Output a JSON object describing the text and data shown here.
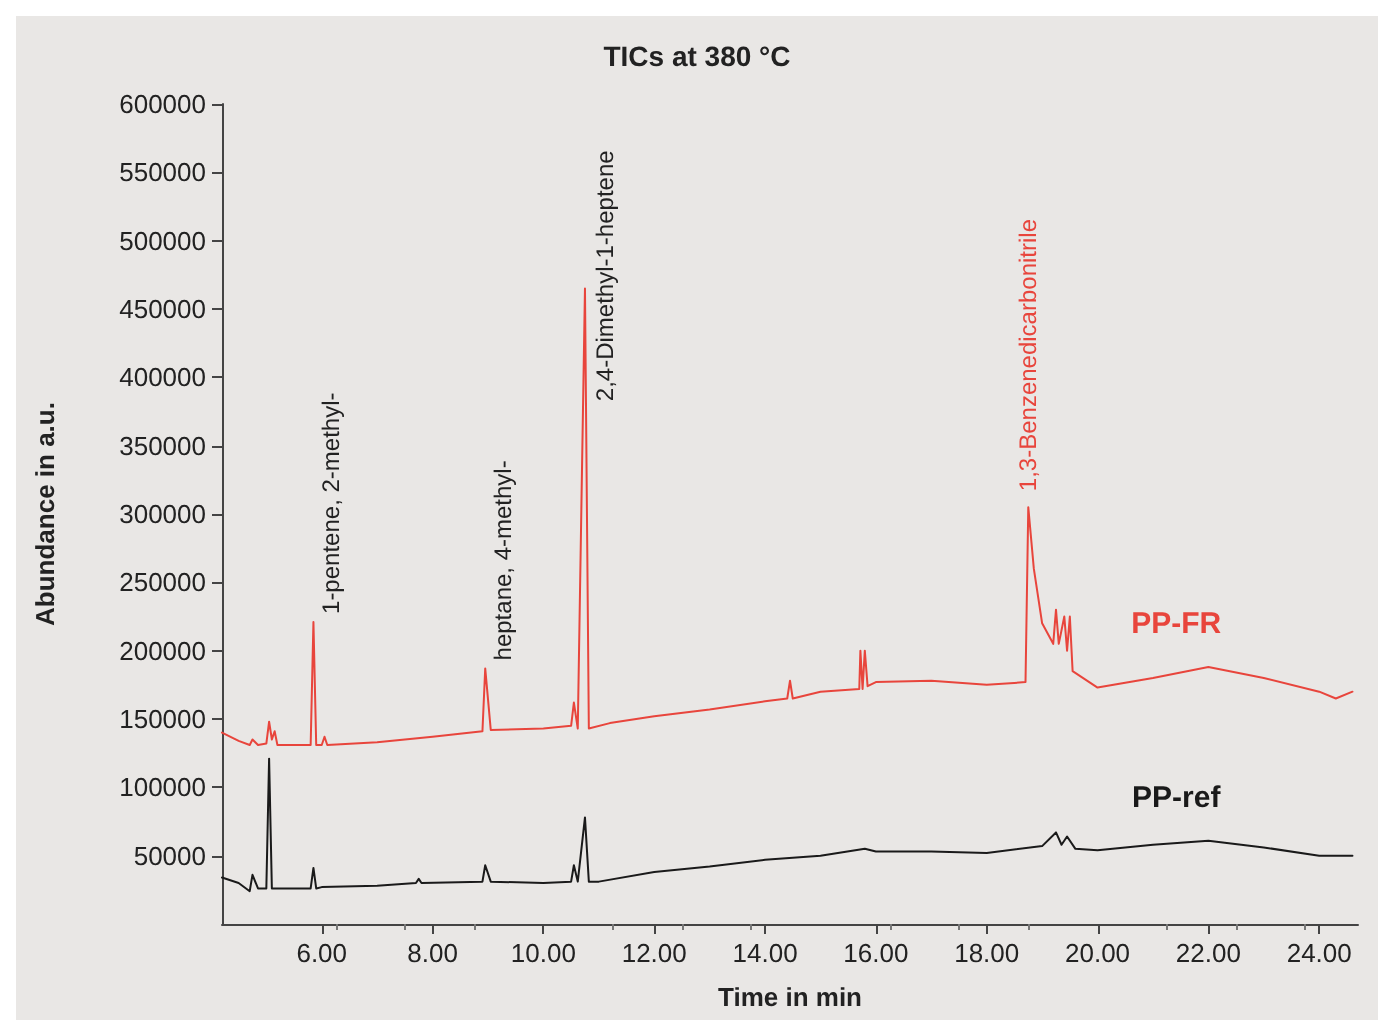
{
  "chart_data": {
    "type": "line",
    "title": "TICs at 380 °C",
    "xlabel": "Time in min",
    "ylabel": "Abundance in a.u.",
    "xlim": [
      4.2,
      24.7
    ],
    "ylim": [
      0,
      600000
    ],
    "xticks": [
      {
        "value": 6,
        "label": "6.00"
      },
      {
        "value": 8,
        "label": "8.00"
      },
      {
        "value": 10,
        "label": "10.00"
      },
      {
        "value": 12,
        "label": "12.00"
      },
      {
        "value": 14,
        "label": "14.00"
      },
      {
        "value": 16,
        "label": "16.00"
      },
      {
        "value": 18,
        "label": "18.00"
      },
      {
        "value": 20,
        "label": "20.00"
      },
      {
        "value": 22,
        "label": "22.00"
      },
      {
        "value": 24,
        "label": "24.00"
      }
    ],
    "yticks": [
      50000,
      100000,
      150000,
      200000,
      250000,
      300000,
      350000,
      400000,
      450000,
      500000,
      550000,
      600000
    ],
    "grid": false,
    "legend": false,
    "marker": "none",
    "line_style": "solid",
    "series": [
      {
        "name": "PP-FR",
        "color": "#e8453c",
        "x": [
          4.2,
          4.5,
          4.7,
          4.75,
          4.85,
          5.0,
          5.05,
          5.1,
          5.15,
          5.2,
          5.8,
          5.85,
          5.9,
          6.0,
          6.05,
          6.1,
          7,
          8,
          8.9,
          8.95,
          9.05,
          10,
          10.5,
          10.55,
          10.62,
          10.75,
          10.82,
          11.2,
          12,
          13,
          14,
          14.4,
          14.45,
          14.5,
          15,
          15.7,
          15.72,
          15.76,
          15.8,
          15.85,
          16,
          17,
          18,
          18.7,
          18.75,
          18.85,
          19.0,
          19.2,
          19.25,
          19.3,
          19.4,
          19.45,
          19.5,
          19.55,
          20,
          21,
          22,
          23,
          24,
          24.3,
          24.6
        ],
        "values": [
          140000,
          134000,
          131000,
          135000,
          131000,
          132000,
          148000,
          135000,
          141000,
          131000,
          131000,
          221000,
          131000,
          131000,
          137000,
          131000,
          133000,
          137000,
          141000,
          187000,
          142000,
          143000,
          145000,
          162000,
          143000,
          465000,
          143000,
          147000,
          152000,
          157000,
          163000,
          165000,
          178000,
          165000,
          170000,
          172000,
          200000,
          172000,
          200000,
          174000,
          177000,
          178000,
          175000,
          177000,
          305000,
          260000,
          220000,
          205000,
          230000,
          205000,
          225000,
          200000,
          225000,
          185000,
          173000,
          180000,
          188000,
          180000,
          170000,
          165000,
          170000
        ]
      },
      {
        "name": "PP-ref",
        "color": "#1a1a1a",
        "x": [
          4.2,
          4.5,
          4.7,
          4.75,
          4.85,
          5.0,
          5.05,
          5.1,
          5.8,
          5.85,
          5.9,
          6.0,
          7,
          7.7,
          7.75,
          7.8,
          8.9,
          8.95,
          9.05,
          10,
          10.5,
          10.55,
          10.62,
          10.75,
          10.82,
          11,
          12,
          13,
          14,
          15,
          15.8,
          16,
          17,
          18,
          19,
          19.25,
          19.35,
          19.45,
          19.6,
          20,
          21,
          22,
          23,
          24,
          24.6
        ],
        "values": [
          34000,
          30000,
          24000,
          36000,
          26000,
          26000,
          121000,
          26000,
          26000,
          41000,
          26000,
          27000,
          28000,
          30000,
          33000,
          30000,
          31000,
          43000,
          31000,
          30000,
          31000,
          43000,
          31000,
          78000,
          31000,
          31000,
          38000,
          42000,
          47000,
          50000,
          55000,
          53000,
          53000,
          52000,
          57000,
          67000,
          58000,
          64000,
          55000,
          54000,
          58000,
          61000,
          56000,
          50000,
          50000
        ]
      }
    ],
    "annotations": [
      {
        "text": "1-pentene, 2-methyl-",
        "x": 5.85,
        "y": 221000
      },
      {
        "text": "heptane, 4-methyl-",
        "x": 8.95,
        "y": 187000
      },
      {
        "text": "2,4-Dimethyl-1-heptene",
        "x": 10.75,
        "y": 465000
      },
      {
        "text": "1,3-Benzenedicarbonitrile",
        "x": 18.75,
        "y": 305000
      }
    ]
  }
}
